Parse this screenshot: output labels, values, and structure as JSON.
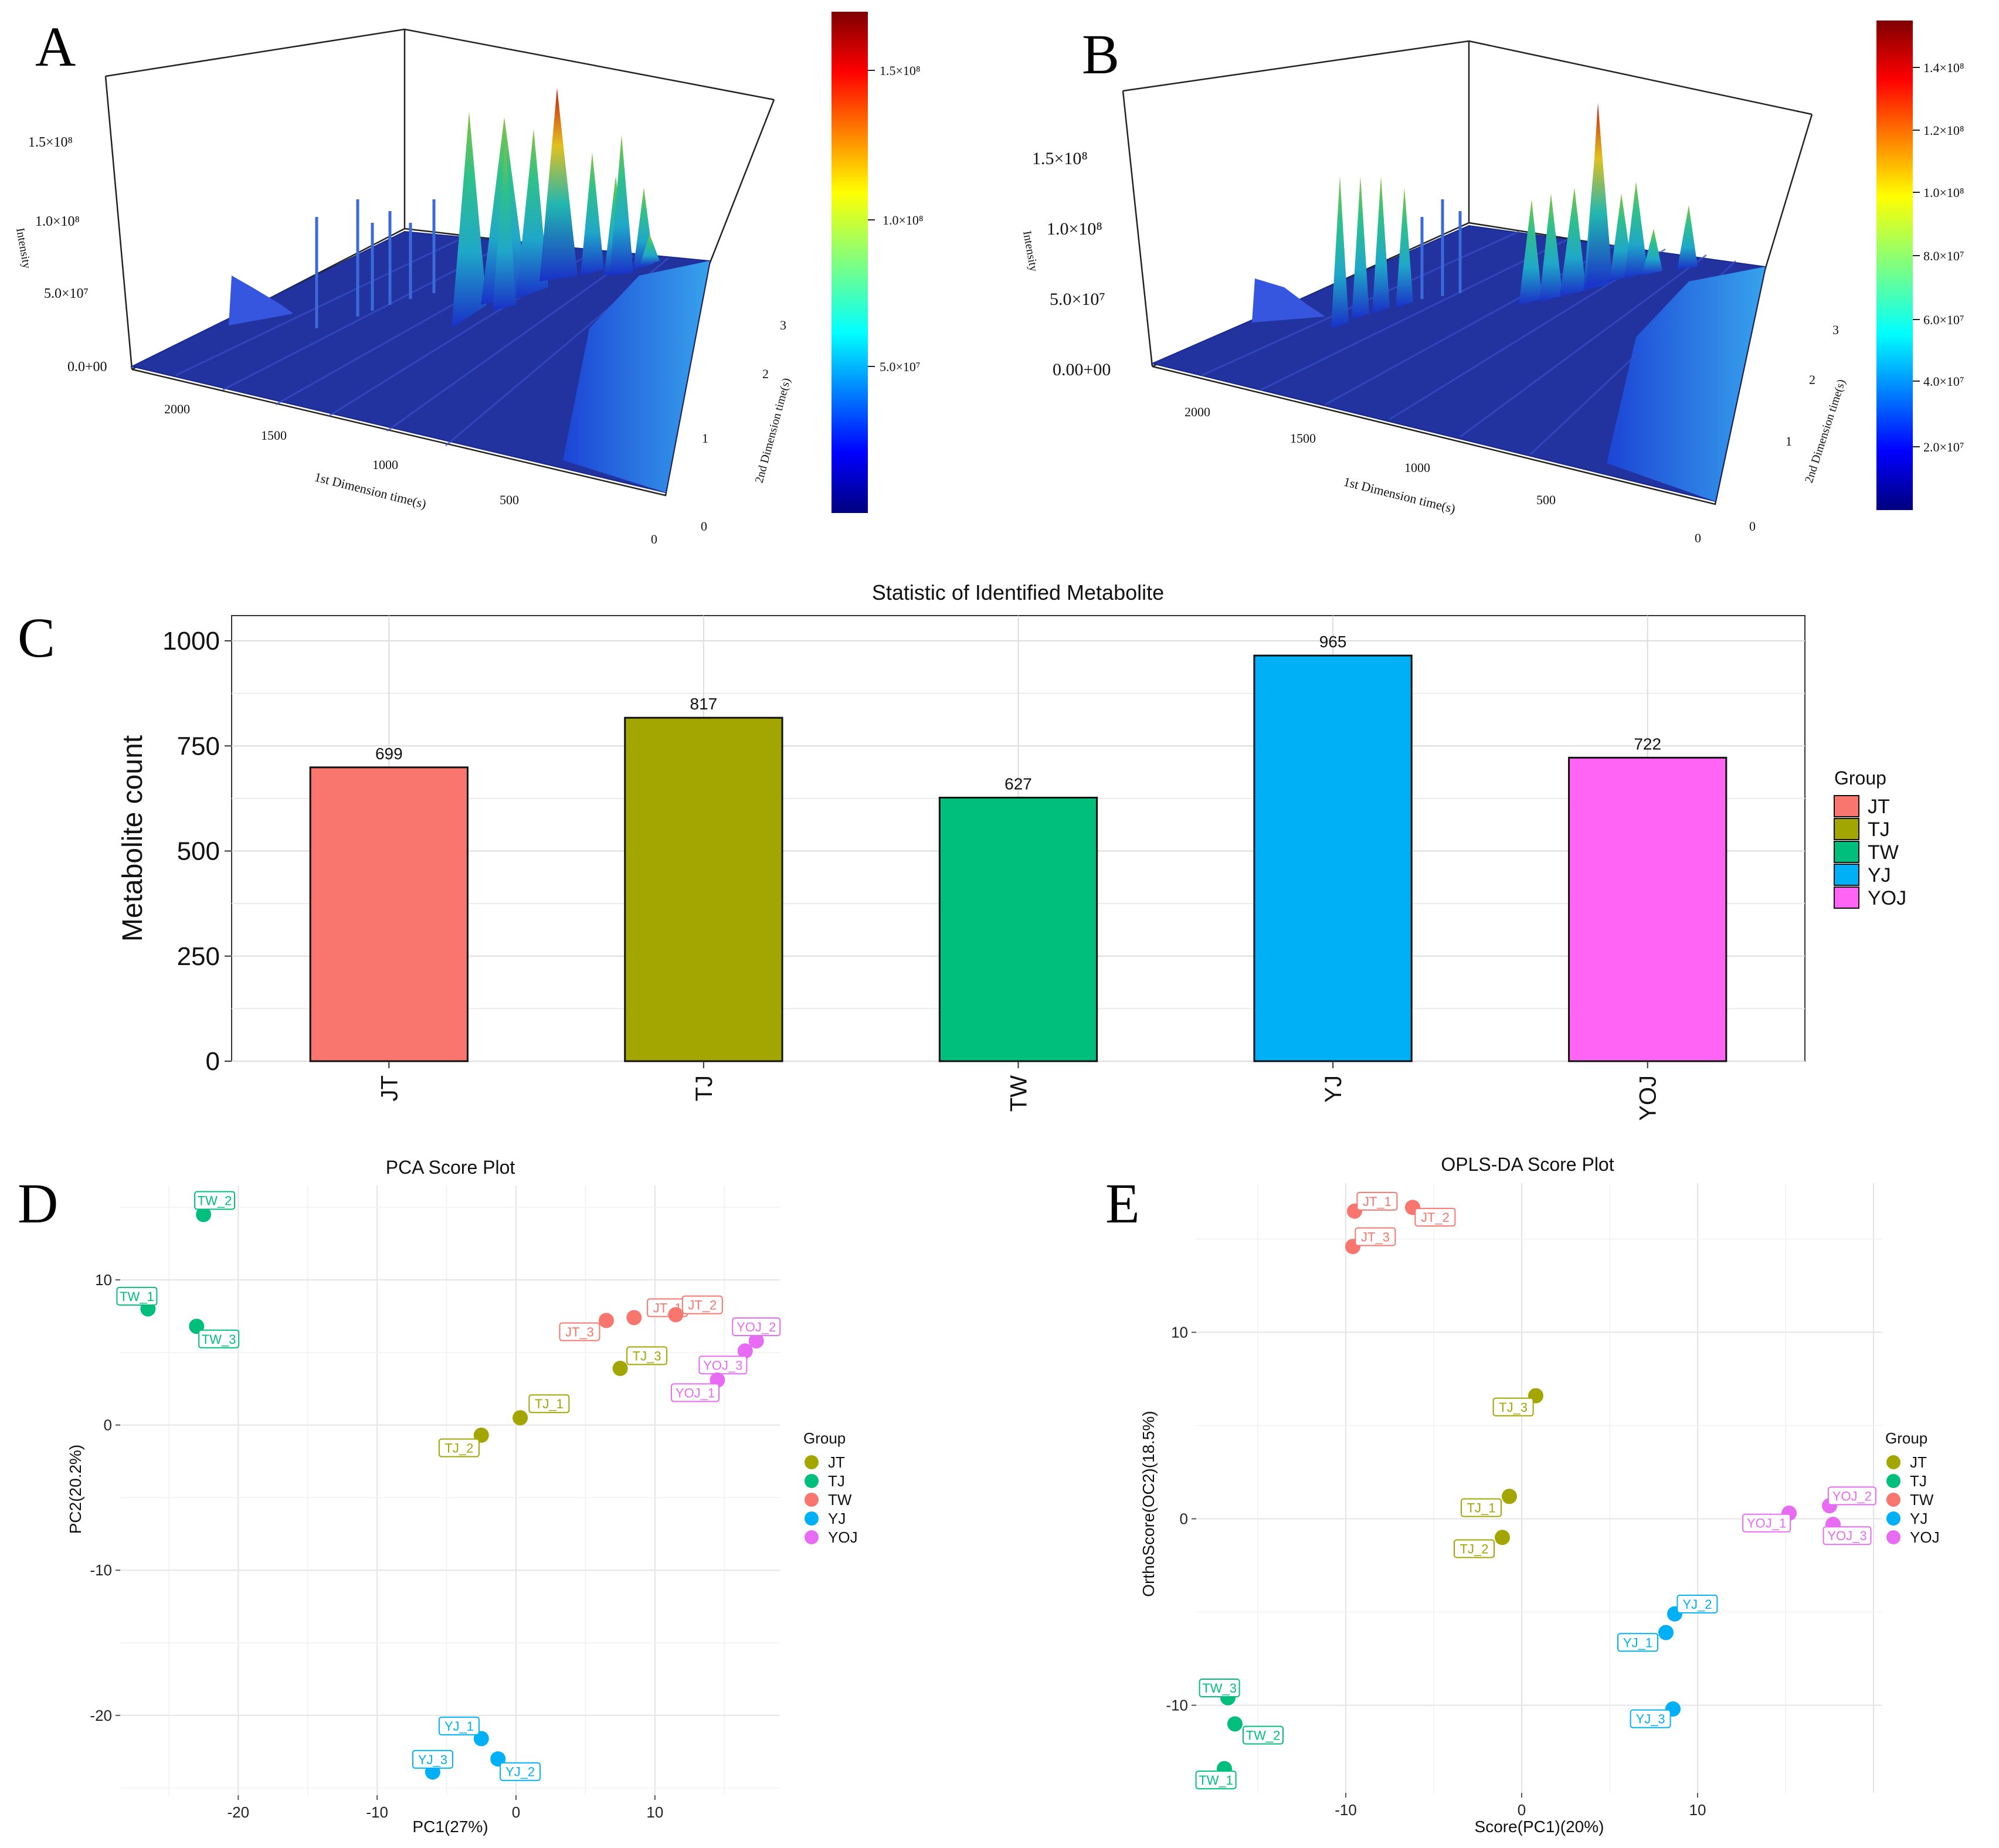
{
  "panels": {
    "A": {
      "letter": "A",
      "z_ticks": [
        "1.5×10⁸",
        "1.0×10⁸",
        "5.0×10⁷",
        "0.0+00"
      ],
      "z_label": "Intensity",
      "x_ticks": [
        "2000",
        "1500",
        "1000",
        "500"
      ],
      "x_label": "1st Dimension time(s)",
      "y_ticks": [
        "0",
        "1",
        "2",
        "3"
      ],
      "y_label": "2nd Dimension time(s)",
      "colorbar_ticks": [
        "1.5×10⁸",
        "1.0×10⁸",
        "5.0×10⁷"
      ]
    },
    "B": {
      "letter": "B",
      "z_ticks": [
        "1.5×10⁸",
        "1.0×10⁸",
        "5.0×10⁷",
        "0.00+00"
      ],
      "z_label": "Intensity",
      "x_ticks": [
        "2000",
        "1500",
        "1000",
        "500"
      ],
      "x_label": "1st Dimension time(s)",
      "y_ticks": [
        "0",
        "1",
        "2",
        "3"
      ],
      "y_label": "2nd Dimension time(s)",
      "colorbar_ticks": [
        "1.4×10⁸",
        "1.2×10⁸",
        "1.0×10⁸",
        "8.0×10⁷",
        "6.0×10⁷",
        "4.0×10⁷",
        "2.0×10⁷"
      ]
    },
    "C": {
      "letter": "C"
    },
    "D": {
      "letter": "D"
    },
    "E": {
      "letter": "E"
    }
  },
  "colors": {
    "JT": "#F8766D",
    "TJ": "#A3A500",
    "TW": "#00BF7D",
    "YJ": "#00B0F6",
    "YOJ": "#E76BF3"
  },
  "chart_data": [
    {
      "id": "bar",
      "type": "bar",
      "title": "Statistic of Identified Metabolite",
      "xlabel": "",
      "ylabel": "Metabolite count",
      "categories": [
        "JT",
        "TJ",
        "TW",
        "YJ",
        "YOJ"
      ],
      "values": [
        699,
        817,
        627,
        965,
        722
      ],
      "ylim": [
        0,
        1060
      ],
      "yticks": [
        0,
        250,
        500,
        750,
        1000
      ],
      "legend_title": "Group",
      "legend": [
        "JT",
        "TJ",
        "TW",
        "YJ",
        "YOJ"
      ],
      "colors": [
        "#F8766D",
        "#A3A500",
        "#00BF7D",
        "#00B0F6",
        "#FF64F5"
      ]
    },
    {
      "id": "pca",
      "type": "scatter",
      "title": "PCA Score Plot",
      "xlabel": "PC1(27%)",
      "ylabel": "PC2(20.2%)",
      "xlim": [
        -28.5,
        19
      ],
      "ylim": [
        -25.5,
        16.5
      ],
      "xticks": [
        -20,
        -10,
        0,
        10
      ],
      "yticks": [
        -20,
        -10,
        0,
        10
      ],
      "legend_title": "Group",
      "legend": [
        "JT",
        "TJ",
        "TW",
        "YJ",
        "YOJ"
      ],
      "legend_colors": [
        "#A3A500",
        "#00BF7D",
        "#F8766D",
        "#00B0F6",
        "#E76BF3"
      ],
      "points": [
        {
          "label": "TW_2",
          "group": "TW",
          "x": -22.5,
          "y": 14.5,
          "lx": 0.5,
          "ly": 1.0
        },
        {
          "label": "TW_1",
          "group": "TW",
          "x": -26.5,
          "y": 8.0,
          "lx": -0.5,
          "ly": 0.9
        },
        {
          "label": "TW_3",
          "group": "TW",
          "x": -23.0,
          "y": 6.8,
          "lx": 1.0,
          "ly": -0.9
        },
        {
          "label": "JT_1",
          "group": "JT",
          "x": 8.5,
          "y": 7.4,
          "lx": 1.5,
          "ly": 0.7
        },
        {
          "label": "JT_2",
          "group": "JT",
          "x": 11.5,
          "y": 7.6,
          "lx": 1.2,
          "ly": 0.7
        },
        {
          "label": "JT_3",
          "group": "JT",
          "x": 6.5,
          "y": 7.2,
          "lx": -1.2,
          "ly": -0.8
        },
        {
          "label": "TJ_3",
          "group": "TJ",
          "x": 7.5,
          "y": 3.9,
          "lx": 1.2,
          "ly": 0.9
        },
        {
          "label": "TJ_1",
          "group": "TJ",
          "x": 0.3,
          "y": 0.5,
          "lx": 1.3,
          "ly": 1.0
        },
        {
          "label": "TJ_2",
          "group": "TJ",
          "x": -2.5,
          "y": -0.7,
          "lx": -1.0,
          "ly": -0.9
        },
        {
          "label": "YOJ_2",
          "group": "YOJ",
          "x": 17.3,
          "y": 5.8,
          "lx": 0.0,
          "ly": 1.0
        },
        {
          "label": "YOJ_3",
          "group": "YOJ",
          "x": 16.5,
          "y": 5.1,
          "lx": -1.0,
          "ly": -1.0
        },
        {
          "label": "YOJ_1",
          "group": "YOJ",
          "x": 14.5,
          "y": 3.1,
          "lx": -1.0,
          "ly": -0.9
        },
        {
          "label": "YJ_1",
          "group": "YJ",
          "x": -2.5,
          "y": -21.6,
          "lx": -1.0,
          "ly": 0.9
        },
        {
          "label": "YJ_2",
          "group": "YJ",
          "x": -1.3,
          "y": -23.0,
          "lx": 1.0,
          "ly": -0.9
        },
        {
          "label": "YJ_3",
          "group": "YJ",
          "x": -6.0,
          "y": -23.9,
          "lx": 0.0,
          "ly": 0.9
        }
      ]
    },
    {
      "id": "oplsda",
      "type": "scatter",
      "title": "OPLS-DA Score Plot",
      "xlabel": "Score(PC1)(20%)",
      "ylabel": "OrthoScore(OC2)(18.5%)",
      "xlim": [
        -18.5,
        20.5
      ],
      "ylim": [
        -14.7,
        18
      ],
      "xticks": [
        -10,
        0,
        10
      ],
      "yticks": [
        -10,
        0,
        10
      ],
      "legend_title": "Group",
      "legend": [
        "JT",
        "TJ",
        "TW",
        "YJ",
        "YOJ"
      ],
      "legend_colors": [
        "#A3A500",
        "#00BF7D",
        "#F8766D",
        "#00B0F6",
        "#E76BF3"
      ],
      "points": [
        {
          "label": "JT_1",
          "group": "JT",
          "x": -9.5,
          "y": 16.5,
          "lx": 0.8,
          "ly": 0.7
        },
        {
          "label": "JT_2",
          "group": "JT",
          "x": -6.2,
          "y": 16.7,
          "lx": 0.8,
          "ly": -0.7
        },
        {
          "label": "JT_3",
          "group": "JT",
          "x": -9.6,
          "y": 14.6,
          "lx": 0.8,
          "ly": 0.7
        },
        {
          "label": "TJ_3",
          "group": "TJ",
          "x": 0.8,
          "y": 6.6,
          "lx": -0.8,
          "ly": -0.8
        },
        {
          "label": "TJ_1",
          "group": "TJ",
          "x": -0.7,
          "y": 1.2,
          "lx": -1.0,
          "ly": -0.8
        },
        {
          "label": "TJ_2",
          "group": "TJ",
          "x": -1.1,
          "y": -1.0,
          "lx": -1.0,
          "ly": -0.8
        },
        {
          "label": "YOJ_2",
          "group": "YOJ",
          "x": 17.5,
          "y": 0.7,
          "lx": 0.8,
          "ly": 0.7
        },
        {
          "label": "YOJ_1",
          "group": "YOJ",
          "x": 15.2,
          "y": 0.3,
          "lx": -0.8,
          "ly": -0.7
        },
        {
          "label": "YOJ_3",
          "group": "YOJ",
          "x": 17.7,
          "y": -0.3,
          "lx": 0.5,
          "ly": -0.8
        },
        {
          "label": "YJ_2",
          "group": "YJ",
          "x": 8.7,
          "y": -5.1,
          "lx": 0.8,
          "ly": 0.7
        },
        {
          "label": "YJ_1",
          "group": "YJ",
          "x": 8.2,
          "y": -6.1,
          "lx": -1.0,
          "ly": -0.7
        },
        {
          "label": "YJ_3",
          "group": "YJ",
          "x": 8.6,
          "y": -10.2,
          "lx": -0.8,
          "ly": -0.7
        },
        {
          "label": "TW_3",
          "group": "TW",
          "x": -16.7,
          "y": -9.6,
          "lx": -0.3,
          "ly": 0.7
        },
        {
          "label": "TW_2",
          "group": "TW",
          "x": -16.3,
          "y": -11.0,
          "lx": 1.0,
          "ly": -0.8
        },
        {
          "label": "TW_1",
          "group": "TW",
          "x": -16.9,
          "y": -13.4,
          "lx": -0.3,
          "ly": -0.8
        }
      ]
    }
  ]
}
